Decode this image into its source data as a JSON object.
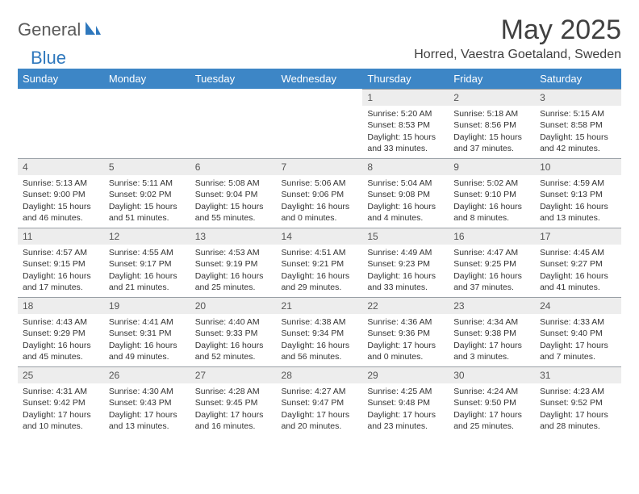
{
  "brand": {
    "part1": "General",
    "part2": "Blue"
  },
  "title": "May 2025",
  "location": "Horred, Vaestra Goetaland, Sweden",
  "colors": {
    "header_bg": "#3d86c6",
    "header_text": "#ffffff",
    "daynum_bg": "#ededed",
    "daynum_border": "#9aa0a6",
    "body_text": "#333333",
    "title_text": "#404040",
    "brand_gray": "#5a5a5a",
    "brand_blue": "#2f78bd",
    "page_bg": "#ffffff"
  },
  "typography": {
    "title_fontsize": 34,
    "location_fontsize": 16,
    "weekday_fontsize": 13,
    "daynum_fontsize": 12,
    "cell_fontsize": 10.5,
    "logo_fontsize": 22
  },
  "weekdays": [
    "Sunday",
    "Monday",
    "Tuesday",
    "Wednesday",
    "Thursday",
    "Friday",
    "Saturday"
  ],
  "calendar": {
    "first_weekday_index": 4,
    "num_days": 31,
    "days": [
      {
        "n": 1,
        "sunrise": "5:20 AM",
        "sunset": "8:53 PM",
        "daylight": "15 hours and 33 minutes."
      },
      {
        "n": 2,
        "sunrise": "5:18 AM",
        "sunset": "8:56 PM",
        "daylight": "15 hours and 37 minutes."
      },
      {
        "n": 3,
        "sunrise": "5:15 AM",
        "sunset": "8:58 PM",
        "daylight": "15 hours and 42 minutes."
      },
      {
        "n": 4,
        "sunrise": "5:13 AM",
        "sunset": "9:00 PM",
        "daylight": "15 hours and 46 minutes."
      },
      {
        "n": 5,
        "sunrise": "5:11 AM",
        "sunset": "9:02 PM",
        "daylight": "15 hours and 51 minutes."
      },
      {
        "n": 6,
        "sunrise": "5:08 AM",
        "sunset": "9:04 PM",
        "daylight": "15 hours and 55 minutes."
      },
      {
        "n": 7,
        "sunrise": "5:06 AM",
        "sunset": "9:06 PM",
        "daylight": "16 hours and 0 minutes."
      },
      {
        "n": 8,
        "sunrise": "5:04 AM",
        "sunset": "9:08 PM",
        "daylight": "16 hours and 4 minutes."
      },
      {
        "n": 9,
        "sunrise": "5:02 AM",
        "sunset": "9:10 PM",
        "daylight": "16 hours and 8 minutes."
      },
      {
        "n": 10,
        "sunrise": "4:59 AM",
        "sunset": "9:13 PM",
        "daylight": "16 hours and 13 minutes."
      },
      {
        "n": 11,
        "sunrise": "4:57 AM",
        "sunset": "9:15 PM",
        "daylight": "16 hours and 17 minutes."
      },
      {
        "n": 12,
        "sunrise": "4:55 AM",
        "sunset": "9:17 PM",
        "daylight": "16 hours and 21 minutes."
      },
      {
        "n": 13,
        "sunrise": "4:53 AM",
        "sunset": "9:19 PM",
        "daylight": "16 hours and 25 minutes."
      },
      {
        "n": 14,
        "sunrise": "4:51 AM",
        "sunset": "9:21 PM",
        "daylight": "16 hours and 29 minutes."
      },
      {
        "n": 15,
        "sunrise": "4:49 AM",
        "sunset": "9:23 PM",
        "daylight": "16 hours and 33 minutes."
      },
      {
        "n": 16,
        "sunrise": "4:47 AM",
        "sunset": "9:25 PM",
        "daylight": "16 hours and 37 minutes."
      },
      {
        "n": 17,
        "sunrise": "4:45 AM",
        "sunset": "9:27 PM",
        "daylight": "16 hours and 41 minutes."
      },
      {
        "n": 18,
        "sunrise": "4:43 AM",
        "sunset": "9:29 PM",
        "daylight": "16 hours and 45 minutes."
      },
      {
        "n": 19,
        "sunrise": "4:41 AM",
        "sunset": "9:31 PM",
        "daylight": "16 hours and 49 minutes."
      },
      {
        "n": 20,
        "sunrise": "4:40 AM",
        "sunset": "9:33 PM",
        "daylight": "16 hours and 52 minutes."
      },
      {
        "n": 21,
        "sunrise": "4:38 AM",
        "sunset": "9:34 PM",
        "daylight": "16 hours and 56 minutes."
      },
      {
        "n": 22,
        "sunrise": "4:36 AM",
        "sunset": "9:36 PM",
        "daylight": "17 hours and 0 minutes."
      },
      {
        "n": 23,
        "sunrise": "4:34 AM",
        "sunset": "9:38 PM",
        "daylight": "17 hours and 3 minutes."
      },
      {
        "n": 24,
        "sunrise": "4:33 AM",
        "sunset": "9:40 PM",
        "daylight": "17 hours and 7 minutes."
      },
      {
        "n": 25,
        "sunrise": "4:31 AM",
        "sunset": "9:42 PM",
        "daylight": "17 hours and 10 minutes."
      },
      {
        "n": 26,
        "sunrise": "4:30 AM",
        "sunset": "9:43 PM",
        "daylight": "17 hours and 13 minutes."
      },
      {
        "n": 27,
        "sunrise": "4:28 AM",
        "sunset": "9:45 PM",
        "daylight": "17 hours and 16 minutes."
      },
      {
        "n": 28,
        "sunrise": "4:27 AM",
        "sunset": "9:47 PM",
        "daylight": "17 hours and 20 minutes."
      },
      {
        "n": 29,
        "sunrise": "4:25 AM",
        "sunset": "9:48 PM",
        "daylight": "17 hours and 23 minutes."
      },
      {
        "n": 30,
        "sunrise": "4:24 AM",
        "sunset": "9:50 PM",
        "daylight": "17 hours and 25 minutes."
      },
      {
        "n": 31,
        "sunrise": "4:23 AM",
        "sunset": "9:52 PM",
        "daylight": "17 hours and 28 minutes."
      }
    ]
  },
  "labels": {
    "sunrise_prefix": "Sunrise: ",
    "sunset_prefix": "Sunset: ",
    "daylight_prefix": "Daylight: "
  }
}
